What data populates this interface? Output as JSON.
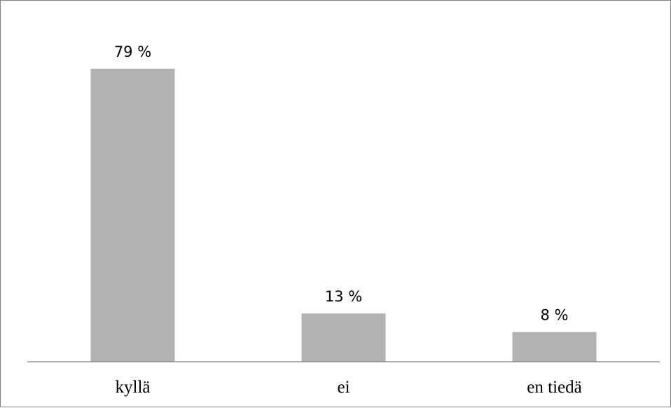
{
  "chart_data": {
    "type": "bar",
    "categories": [
      "kyllä",
      "ei",
      "en tiedä"
    ],
    "values": [
      79,
      13,
      8
    ],
    "data_labels": [
      "79 %",
      "13 %",
      "8 %"
    ],
    "value_unit": "%",
    "title": "",
    "xlabel": "",
    "ylabel": "",
    "ylim": [
      0,
      80
    ],
    "grid": false,
    "legend": "none",
    "colors": {
      "bar": "#b2b2b2",
      "axis": "#808080",
      "frame": "#808080"
    }
  }
}
